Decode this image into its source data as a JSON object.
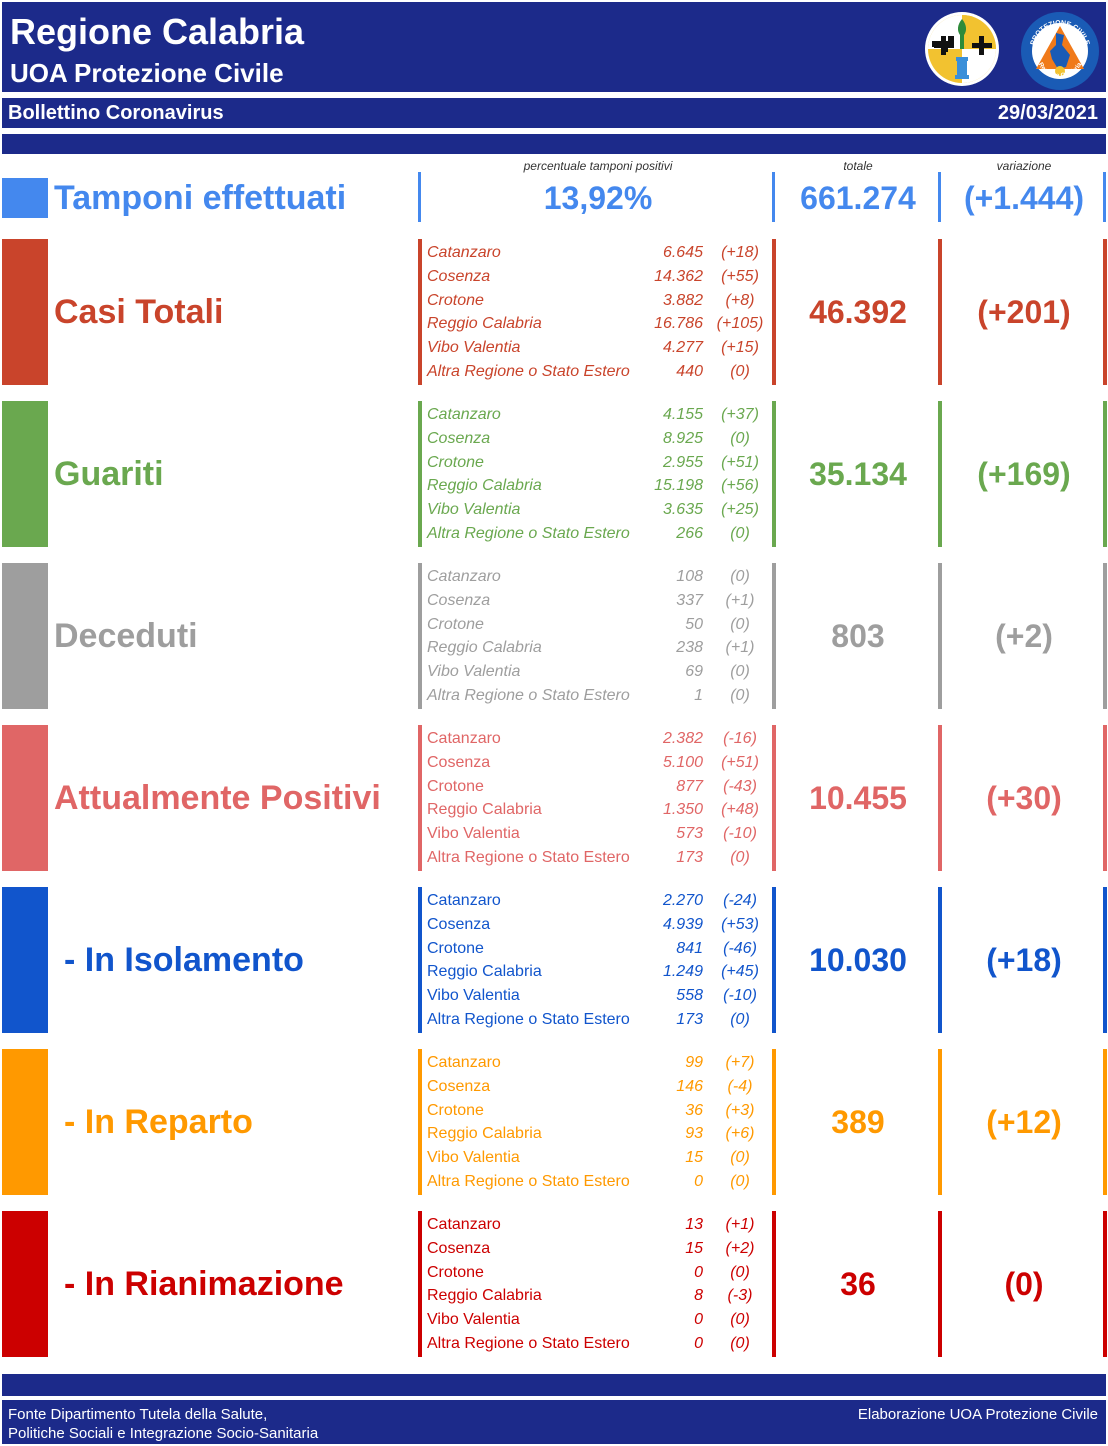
{
  "header": {
    "title": "Regione Calabria",
    "subtitle": "UOA Protezione Civile",
    "logo_pc_text_top": "PROTEZIONE CIVILE",
    "logo_pc_text_bottom": "Regione Calabria"
  },
  "bulletin": {
    "title": "Bollettino Coronavirus",
    "date": "29/03/2021"
  },
  "column_headers": {
    "percent": "percentuale tamponi positivi",
    "total": "totale",
    "variation": "variazione"
  },
  "tamponi": {
    "label": "Tamponi effettuati",
    "percent": "13,92%",
    "total": "661.274",
    "variation": "(+1.444)",
    "color": "#4488ee"
  },
  "sections": [
    {
      "key": "casi",
      "label": "Casi Totali",
      "color": "#c9442b",
      "italic": true,
      "total": "46.392",
      "variation": "(+201)",
      "rows": [
        {
          "name": "Catanzaro",
          "value": "6.645",
          "var": "(+18)"
        },
        {
          "name": "Cosenza",
          "value": "14.362",
          "var": "(+55)"
        },
        {
          "name": "Crotone",
          "value": "3.882",
          "var": "(+8)"
        },
        {
          "name": "Reggio Calabria",
          "value": "16.786",
          "var": "(+105)"
        },
        {
          "name": "Vibo Valentia",
          "value": "4.277",
          "var": "(+15)"
        },
        {
          "name": "Altra Regione o Stato Estero",
          "value": "440",
          "var": "(0)"
        }
      ]
    },
    {
      "key": "guariti",
      "label": "Guariti",
      "color": "#6aa84f",
      "italic": true,
      "total": "35.134",
      "variation": "(+169)",
      "rows": [
        {
          "name": "Catanzaro",
          "value": "4.155",
          "var": "(+37)"
        },
        {
          "name": "Cosenza",
          "value": "8.925",
          "var": "(0)"
        },
        {
          "name": "Crotone",
          "value": "2.955",
          "var": "(+51)"
        },
        {
          "name": "Reggio Calabria",
          "value": "15.198",
          "var": "(+56)"
        },
        {
          "name": "Vibo Valentia",
          "value": "3.635",
          "var": "(+25)"
        },
        {
          "name": "Altra Regione o Stato Estero",
          "value": "266",
          "var": "(0)"
        }
      ]
    },
    {
      "key": "deceduti",
      "label": "Deceduti",
      "color": "#9e9e9e",
      "italic": true,
      "total": "803",
      "variation": "(+2)",
      "rows": [
        {
          "name": "Catanzaro",
          "value": "108",
          "var": "(0)"
        },
        {
          "name": "Cosenza",
          "value": "337",
          "var": "(+1)"
        },
        {
          "name": "Crotone",
          "value": "50",
          "var": "(0)"
        },
        {
          "name": "Reggio Calabria",
          "value": "238",
          "var": "(+1)"
        },
        {
          "name": "Vibo Valentia",
          "value": "69",
          "var": "(0)"
        },
        {
          "name": "Altra Regione o Stato Estero",
          "value": "1",
          "var": "(0)"
        }
      ]
    },
    {
      "key": "positivi",
      "label": "Attualmente Positivi",
      "color": "#e06666",
      "italic": false,
      "total": "10.455",
      "variation": "(+30)",
      "rows": [
        {
          "name": "Catanzaro",
          "value": "2.382",
          "var": "(-16)"
        },
        {
          "name": "Cosenza",
          "value": "5.100",
          "var": "(+51)"
        },
        {
          "name": "Crotone",
          "value": "877",
          "var": "(-43)"
        },
        {
          "name": "Reggio Calabria",
          "value": "1.350",
          "var": "(+48)"
        },
        {
          "name": "Vibo Valentia",
          "value": "573",
          "var": "(-10)"
        },
        {
          "name": "Altra Regione o Stato Estero",
          "value": "173",
          "var": "(0)"
        }
      ]
    },
    {
      "key": "isolamento",
      "label": "- In Isolamento",
      "color": "#1155cc",
      "italic": false,
      "total": "10.030",
      "variation": "(+18)",
      "rows": [
        {
          "name": "Catanzaro",
          "value": "2.270",
          "var": "(-24)"
        },
        {
          "name": "Cosenza",
          "value": "4.939",
          "var": "(+53)"
        },
        {
          "name": "Crotone",
          "value": "841",
          "var": "(-46)"
        },
        {
          "name": "Reggio Calabria",
          "value": "1.249",
          "var": "(+45)"
        },
        {
          "name": "Vibo Valentia",
          "value": "558",
          "var": "(-10)"
        },
        {
          "name": "Altra Regione o Stato Estero",
          "value": "173",
          "var": "(0)"
        }
      ]
    },
    {
      "key": "reparto",
      "label": "- In Reparto",
      "color": "#ff9900",
      "italic": false,
      "total": "389",
      "variation": "(+12)",
      "rows": [
        {
          "name": "Catanzaro",
          "value": "99",
          "var": "(+7)"
        },
        {
          "name": "Cosenza",
          "value": "146",
          "var": "(-4)"
        },
        {
          "name": "Crotone",
          "value": "36",
          "var": "(+3)"
        },
        {
          "name": "Reggio Calabria",
          "value": "93",
          "var": "(+6)"
        },
        {
          "name": "Vibo Valentia",
          "value": "15",
          "var": "(0)"
        },
        {
          "name": "Altra Regione o Stato Estero",
          "value": "0",
          "var": "(0)"
        }
      ]
    },
    {
      "key": "rianimazione",
      "label": "- In Rianimazione",
      "color": "#cc0000",
      "italic": false,
      "total": "36",
      "variation": "(0)",
      "rows": [
        {
          "name": "Catanzaro",
          "value": "13",
          "var": "(+1)"
        },
        {
          "name": "Cosenza",
          "value": "15",
          "var": "(+2)"
        },
        {
          "name": "Crotone",
          "value": "0",
          "var": "(0)"
        },
        {
          "name": "Reggio Calabria",
          "value": "8",
          "var": "(-3)"
        },
        {
          "name": "Vibo Valentia",
          "value": "0",
          "var": "(0)"
        },
        {
          "name": "Altra Regione o Stato Estero",
          "value": "0",
          "var": "(0)"
        }
      ]
    }
  ],
  "footer": {
    "source_line1": "Fonte Dipartimento Tutela della Salute,",
    "source_line2": "Politiche Sociali e Integrazione Socio-Sanitaria",
    "credit": "Elaborazione UOA Protezione Civile"
  }
}
